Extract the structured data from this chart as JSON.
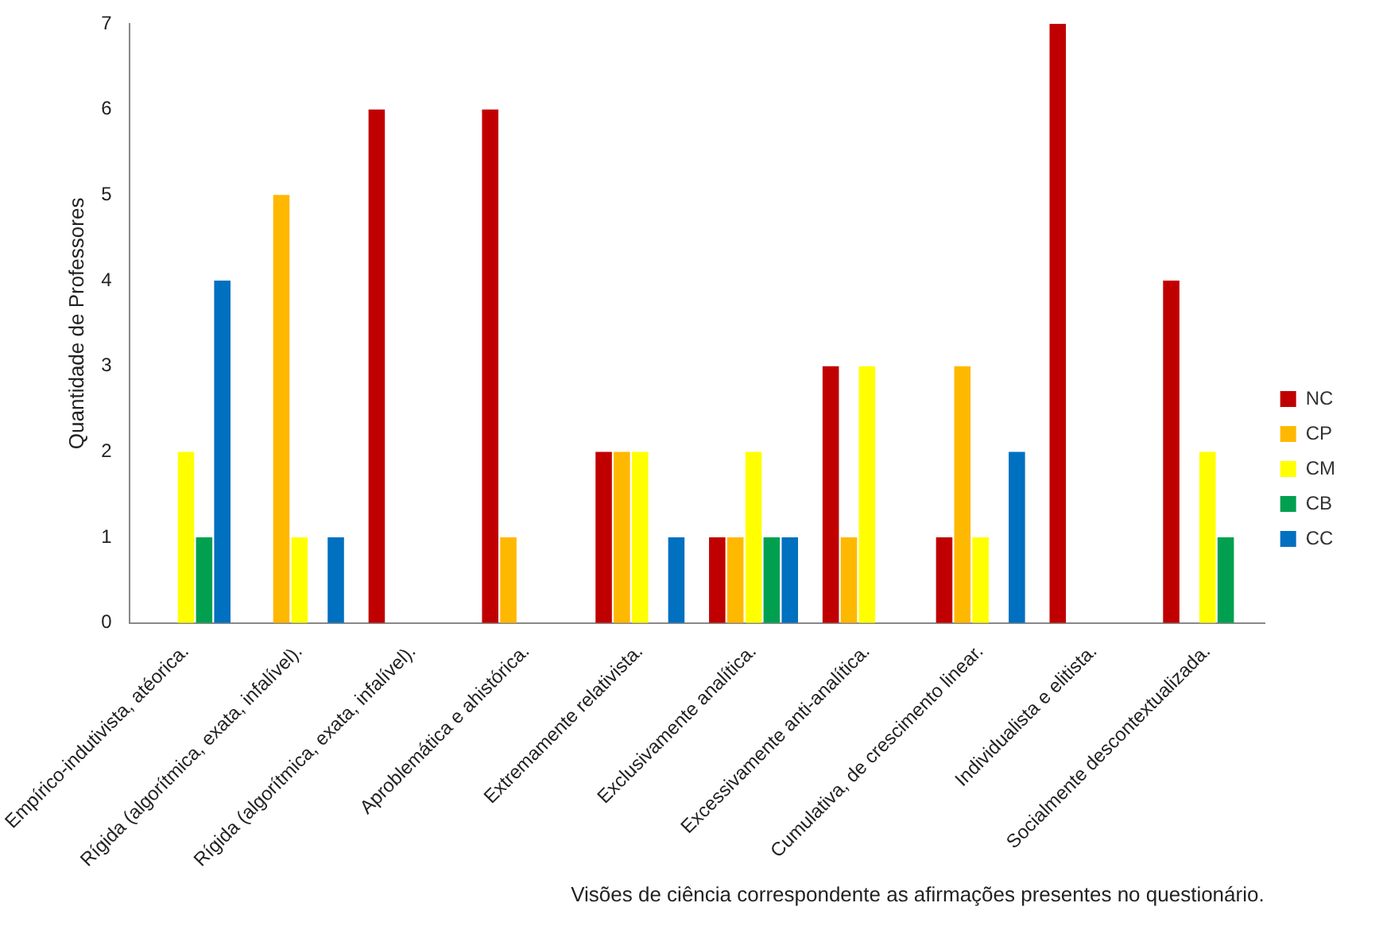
{
  "chart_data": {
    "type": "bar",
    "xlabel": "Visões de ciência correspondente as afirmações presentes no questionário.",
    "ylabel": "Quantidade de Professores",
    "categories": [
      "Empírico-indutivista, atéorica.",
      "Rígida (algorítmica, exata, infalível).",
      "Rígida (algorítmica, exata, infalível).",
      "Aproblemática e ahistórica.",
      "Extremamente relativista.",
      "Exclusivamente analítica.",
      "Excessivamente anti-analítica.",
      "Cumulativa, de crescimento linear.",
      "Individualista e elitista.",
      "Socialmente descontextualizada."
    ],
    "series": [
      {
        "name": "NC",
        "color": "#c00000",
        "values": [
          0,
          0,
          6,
          6,
          2,
          1,
          3,
          1,
          7,
          4
        ]
      },
      {
        "name": "CP",
        "color": "#ffb800",
        "values": [
          0,
          5,
          0,
          1,
          2,
          1,
          1,
          3,
          0,
          0
        ]
      },
      {
        "name": "CM",
        "color": "#ffff00",
        "values": [
          2,
          1,
          0,
          0,
          2,
          2,
          3,
          1,
          0,
          2
        ]
      },
      {
        "name": "CB",
        "color": "#00a050",
        "values": [
          1,
          0,
          0,
          0,
          0,
          1,
          0,
          0,
          0,
          1
        ]
      },
      {
        "name": "CC",
        "color": "#0070c0",
        "values": [
          4,
          1,
          0,
          0,
          1,
          1,
          0,
          2,
          0,
          0
        ]
      }
    ],
    "ylim": [
      0,
      7
    ],
    "yticks": [
      0,
      1,
      2,
      3,
      4,
      5,
      6,
      7
    ],
    "grid": false,
    "legend": "right"
  }
}
